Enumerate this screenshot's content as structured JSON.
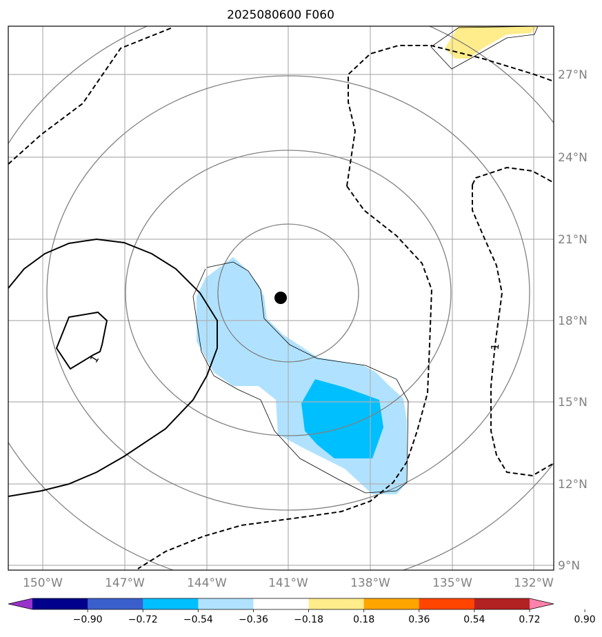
{
  "title": "2025080600 F060",
  "axes": {
    "lon_ticks": [
      "150°W",
      "147°W",
      "144°W",
      "141°W",
      "138°W",
      "135°W",
      "132°W"
    ],
    "lat_ticks": [
      "27°N",
      "24°N",
      "21°N",
      "18°N",
      "15°N",
      "12°N",
      "9°N"
    ]
  },
  "contour_labels": {
    "left": "1",
    "right": "1"
  },
  "colorbar": {
    "colors": [
      "#9932cc",
      "#00008b",
      "#3a5fcd",
      "#00bfff",
      "#b0e2ff",
      "#ffffff",
      "#ffec8b",
      "#ffa500",
      "#ff4500",
      "#b22222",
      "#ff82ab"
    ],
    "ticks": [
      "−0.90",
      "−0.72",
      "−0.54",
      "−0.36",
      "−0.18",
      "0.18",
      "0.36",
      "0.54",
      "0.72",
      "0.90"
    ]
  },
  "colors": {
    "light_blue": "#b0e2ff",
    "deep_sky_blue": "#00bfff",
    "light_yellow": "#ffec8b",
    "grid": "#b0b0b0",
    "range_rings": "#808080"
  }
}
